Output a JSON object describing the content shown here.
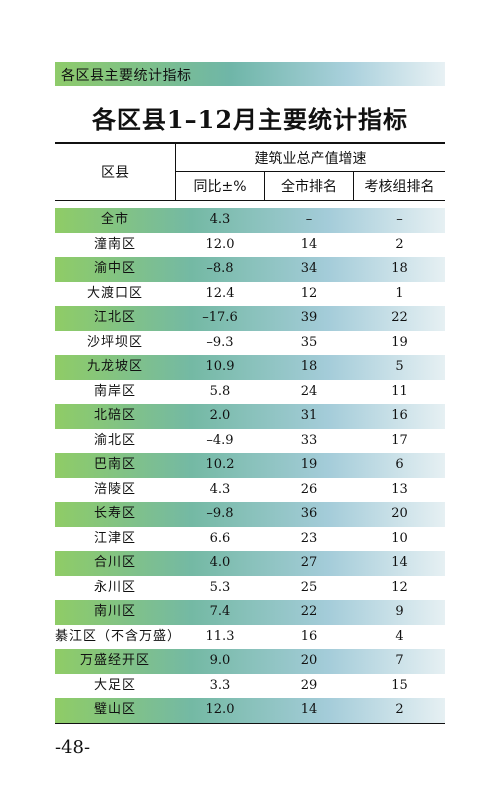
{
  "section_label": "各区县主要统计指标",
  "title": "各区县1–12月主要统计指标",
  "table": {
    "header_region": "区县",
    "header_group": "建筑业总产值增速",
    "columns": [
      "同比±%",
      "全市排名",
      "考核组排名"
    ],
    "rows": [
      {
        "name": "全市",
        "yoy": "4.3",
        "city_rank": "–",
        "group_rank": "–",
        "shaded": true
      },
      {
        "name": "潼南区",
        "yoy": "12.0",
        "city_rank": "14",
        "group_rank": "2",
        "shaded": false
      },
      {
        "name": "渝中区",
        "yoy": "–8.8",
        "city_rank": "34",
        "group_rank": "18",
        "shaded": true
      },
      {
        "name": "大渡口区",
        "yoy": "12.4",
        "city_rank": "12",
        "group_rank": "1",
        "shaded": false
      },
      {
        "name": "江北区",
        "yoy": "–17.6",
        "city_rank": "39",
        "group_rank": "22",
        "shaded": true
      },
      {
        "name": "沙坪坝区",
        "yoy": "–9.3",
        "city_rank": "35",
        "group_rank": "19",
        "shaded": false
      },
      {
        "name": "九龙坡区",
        "yoy": "10.9",
        "city_rank": "18",
        "group_rank": "5",
        "shaded": true
      },
      {
        "name": "南岸区",
        "yoy": "5.8",
        "city_rank": "24",
        "group_rank": "11",
        "shaded": false
      },
      {
        "name": "北碚区",
        "yoy": "2.0",
        "city_rank": "31",
        "group_rank": "16",
        "shaded": true
      },
      {
        "name": "渝北区",
        "yoy": "–4.9",
        "city_rank": "33",
        "group_rank": "17",
        "shaded": false
      },
      {
        "name": "巴南区",
        "yoy": "10.2",
        "city_rank": "19",
        "group_rank": "6",
        "shaded": true
      },
      {
        "name": "涪陵区",
        "yoy": "4.3",
        "city_rank": "26",
        "group_rank": "13",
        "shaded": false
      },
      {
        "name": "长寿区",
        "yoy": "–9.8",
        "city_rank": "36",
        "group_rank": "20",
        "shaded": true
      },
      {
        "name": "江津区",
        "yoy": "6.6",
        "city_rank": "23",
        "group_rank": "10",
        "shaded": false
      },
      {
        "name": "合川区",
        "yoy": "4.0",
        "city_rank": "27",
        "group_rank": "14",
        "shaded": true
      },
      {
        "name": "永川区",
        "yoy": "5.3",
        "city_rank": "25",
        "group_rank": "12",
        "shaded": false
      },
      {
        "name": "南川区",
        "yoy": "7.4",
        "city_rank": "22",
        "group_rank": "9",
        "shaded": true
      },
      {
        "name": "綦江区（不含万盛）",
        "yoy": "11.3",
        "city_rank": "16",
        "group_rank": "4",
        "shaded": false
      },
      {
        "name": "万盛经开区",
        "yoy": "9.0",
        "city_rank": "20",
        "group_rank": "7",
        "shaded": true
      },
      {
        "name": "大足区",
        "yoy": "3.3",
        "city_rank": "29",
        "group_rank": "15",
        "shaded": false
      },
      {
        "name": "璧山区",
        "yoy": "12.0",
        "city_rank": "14",
        "group_rank": "2",
        "shaded": true
      }
    ]
  },
  "page_number": "-48-"
}
